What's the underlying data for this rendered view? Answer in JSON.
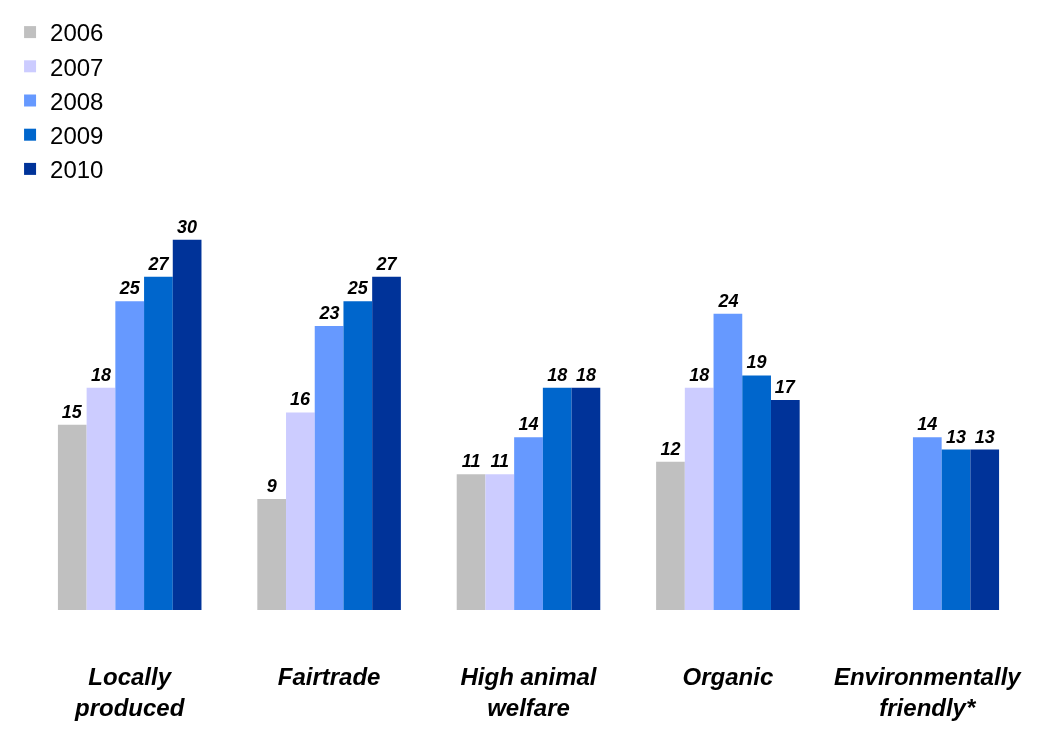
{
  "chart_data": {
    "type": "bar",
    "categories": [
      "Locally\nproduced",
      "Fairtrade",
      "High animal\nwelfare",
      "Organic",
      "Environmentally\nfriendly*"
    ],
    "series": [
      {
        "name": "2006",
        "color": "#c0c0c0",
        "values": [
          15,
          9,
          11,
          12,
          null
        ]
      },
      {
        "name": "2007",
        "color": "#ccccff",
        "values": [
          18,
          16,
          11,
          18,
          null
        ]
      },
      {
        "name": "2008",
        "color": "#6699ff",
        "values": [
          25,
          23,
          14,
          24,
          14
        ]
      },
      {
        "name": "2009",
        "color": "#0066cc",
        "values": [
          27,
          25,
          18,
          19,
          13
        ]
      },
      {
        "name": "2010",
        "color": "#003399",
        "values": [
          30,
          27,
          18,
          17,
          13
        ]
      }
    ],
    "data_labels": true,
    "legend": "top left"
  }
}
